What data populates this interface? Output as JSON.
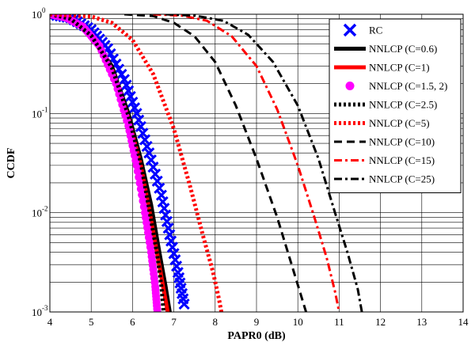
{
  "chart_data": {
    "type": "line",
    "xlabel": "PAPR0 (dB)",
    "ylabel": "CCDF",
    "xlim": [
      4,
      14
    ],
    "ylim": [
      0.001,
      1
    ],
    "yscale": "log",
    "grid": true,
    "legend_position": "top-right",
    "x_ticks": [
      "4",
      "5",
      "6",
      "7",
      "8",
      "9",
      "10",
      "11",
      "12",
      "13",
      "14"
    ],
    "y_ticks": [
      {
        "value": 1,
        "base": "10",
        "exp": "0"
      },
      {
        "value": 0.1,
        "base": "10",
        "exp": "-1"
      },
      {
        "value": 0.01,
        "base": "10",
        "exp": "-2"
      },
      {
        "value": 0.001,
        "base": "10",
        "exp": "-3"
      }
    ],
    "series": [
      {
        "name": "RC",
        "color": "#0000ff",
        "style": "x-markers",
        "x": [
          4.0,
          4.5,
          5.0,
          5.4,
          5.8,
          6.1,
          6.4,
          6.7,
          6.9,
          7.1,
          7.25
        ],
        "y": [
          1.0,
          0.92,
          0.7,
          0.45,
          0.22,
          0.1,
          0.04,
          0.015,
          0.006,
          0.0025,
          0.0012
        ]
      },
      {
        "name": "NNLCP (C=0.6)",
        "color": "#000000",
        "style": "solid-thick",
        "x": [
          4.0,
          4.5,
          5.0,
          5.5,
          5.9,
          6.2,
          6.45,
          6.65,
          6.8,
          6.9
        ],
        "y": [
          1.0,
          0.9,
          0.62,
          0.3,
          0.1,
          0.035,
          0.012,
          0.004,
          0.0018,
          0.001
        ]
      },
      {
        "name": "NNLCP (C=1)",
        "color": "#ff0000",
        "style": "solid-thick",
        "x": [
          4.0,
          4.5,
          5.0,
          5.5,
          5.9,
          6.2,
          6.4,
          6.6,
          6.75,
          6.85
        ],
        "y": [
          1.0,
          0.89,
          0.6,
          0.28,
          0.09,
          0.03,
          0.011,
          0.0038,
          0.0017,
          0.001
        ]
      },
      {
        "name": "NNLCP (C=1.5, 2)",
        "color": "#ff00ff",
        "style": "dot-markers",
        "x": [
          4.0,
          4.4,
          4.8,
          5.2,
          5.6,
          5.9,
          6.1,
          6.3,
          6.45,
          6.55,
          6.6
        ],
        "y": [
          1.0,
          0.92,
          0.75,
          0.48,
          0.2,
          0.075,
          0.03,
          0.01,
          0.004,
          0.0018,
          0.001
        ]
      },
      {
        "name": "NNLCP (C=2.5)",
        "color": "#000000",
        "style": "dotted-thick",
        "x": [
          4.0,
          4.5,
          5.0,
          5.5,
          5.9,
          6.2,
          6.4,
          6.6,
          6.7,
          6.75
        ],
        "y": [
          1.0,
          0.9,
          0.61,
          0.29,
          0.095,
          0.032,
          0.011,
          0.0037,
          0.0018,
          0.001
        ]
      },
      {
        "name": "NNLCP (C=5)",
        "color": "#ff0000",
        "style": "dotted-thick",
        "x": [
          4.0,
          5.0,
          5.5,
          6.0,
          6.5,
          7.0,
          7.4,
          7.7,
          7.95,
          8.1,
          8.15
        ],
        "y": [
          1.0,
          0.95,
          0.82,
          0.55,
          0.25,
          0.07,
          0.018,
          0.006,
          0.0025,
          0.0013,
          0.001
        ]
      },
      {
        "name": "NNLCP (C=10)",
        "color": "#000000",
        "style": "dash",
        "x": [
          5.8,
          6.5,
          7.0,
          7.5,
          8.0,
          8.5,
          9.0,
          9.5,
          9.8,
          10.05,
          10.2
        ],
        "y": [
          1.0,
          0.96,
          0.82,
          0.6,
          0.33,
          0.12,
          0.035,
          0.009,
          0.0035,
          0.0016,
          0.001
        ]
      },
      {
        "name": "NNLCP (C=15)",
        "color": "#ff0000",
        "style": "dashdot",
        "x": [
          6.5,
          7.2,
          7.8,
          8.4,
          9.0,
          9.5,
          10.0,
          10.4,
          10.7,
          10.9,
          11.0
        ],
        "y": [
          1.0,
          0.97,
          0.86,
          0.6,
          0.3,
          0.11,
          0.03,
          0.009,
          0.0035,
          0.0016,
          0.001
        ]
      },
      {
        "name": "NNLCP (C=25)",
        "color": "#000000",
        "style": "dashdot",
        "x": [
          6.8,
          7.5,
          8.2,
          8.8,
          9.4,
          10.0,
          10.5,
          10.9,
          11.2,
          11.45,
          11.55
        ],
        "y": [
          1.0,
          0.97,
          0.86,
          0.62,
          0.33,
          0.12,
          0.035,
          0.01,
          0.004,
          0.0017,
          0.001
        ]
      }
    ]
  }
}
